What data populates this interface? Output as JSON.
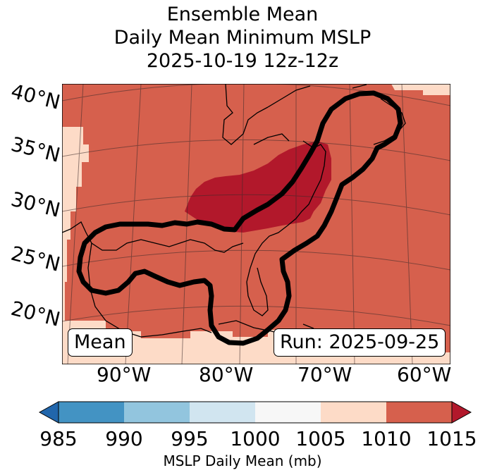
{
  "title": {
    "line1": "Ensemble Mean",
    "line2": "Daily Mean Minimum MSLP",
    "line3": "2025-10-19 12z-12z"
  },
  "map": {
    "lat_labels": [
      "40°N",
      "35°N",
      "30°N",
      "25°N",
      "20°N"
    ],
    "lon_labels": [
      "90°W",
      "80°W",
      "70°W",
      "60°W"
    ],
    "mean_label": "Mean",
    "run_label": "Run: 2025-09-25",
    "dominant_bin": "1010-1015 mb",
    "low_bin_region": "1005-1010 mb along western and southern edges",
    "high_bin_region": ">1015 mb over US East Coast / Appalachians",
    "outline": "ensemble probability contour over Gulf of Mexico, Florida, and US East Coast"
  },
  "colorbar": {
    "ticks": [
      "985",
      "990",
      "995",
      "1000",
      "1005",
      "1010",
      "1015"
    ],
    "colors": [
      "#2166ac",
      "#4393c3",
      "#92c5de",
      "#d1e5f0",
      "#f7f7f7",
      "#fddbc7",
      "#d6604d",
      "#b2182b"
    ],
    "label": "MSLP Daily Mean (mb)",
    "extend": "both"
  },
  "colors": {
    "bin_1005_1010": "#fddbc7",
    "bin_1010_1015": "#d6604d",
    "bin_above_1015": "#b2182b"
  }
}
